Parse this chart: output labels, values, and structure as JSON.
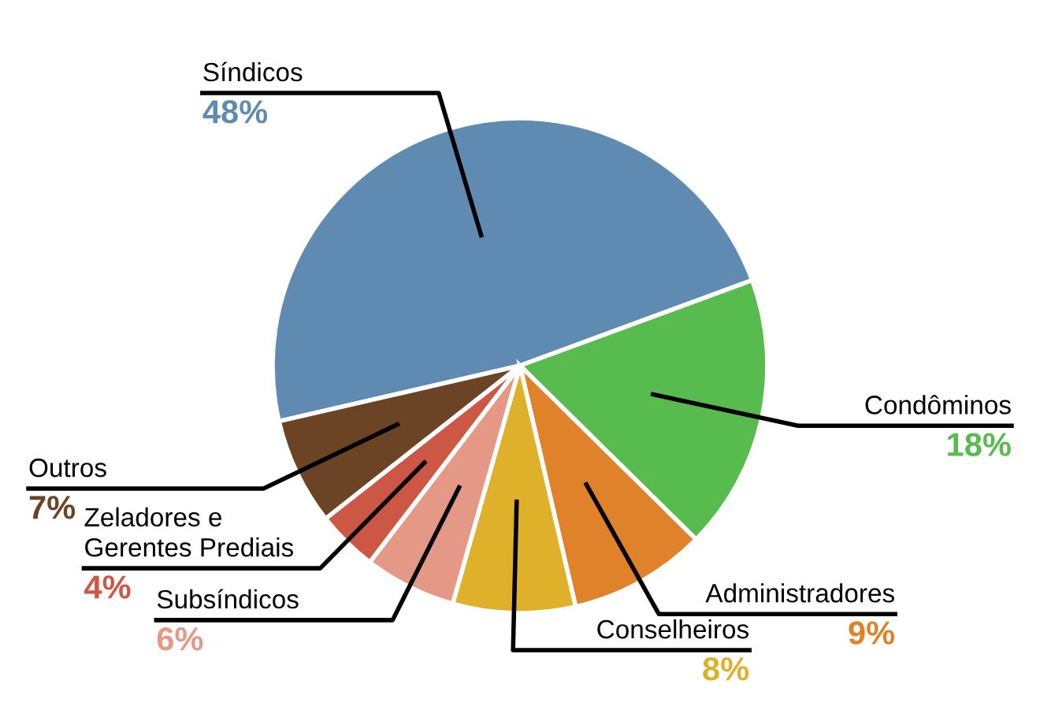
{
  "chart_data": {
    "type": "pie",
    "categories": [
      "Síndicos",
      "Condôminos",
      "Administradores",
      "Conselheiros",
      "Subsíndicos",
      "Zeladores e\nGerentes Prediais",
      "Outros"
    ],
    "values": [
      48,
      18,
      9,
      8,
      6,
      4,
      7
    ],
    "value_labels": [
      "48%",
      "18%",
      "9%",
      "8%",
      "6%",
      "4%",
      "7%"
    ],
    "colors": [
      "#5f8bb3",
      "#57bb4d",
      "#e08229",
      "#dfb12b",
      "#e69886",
      "#cc5744",
      "#6b4425"
    ],
    "legend": false
  }
}
